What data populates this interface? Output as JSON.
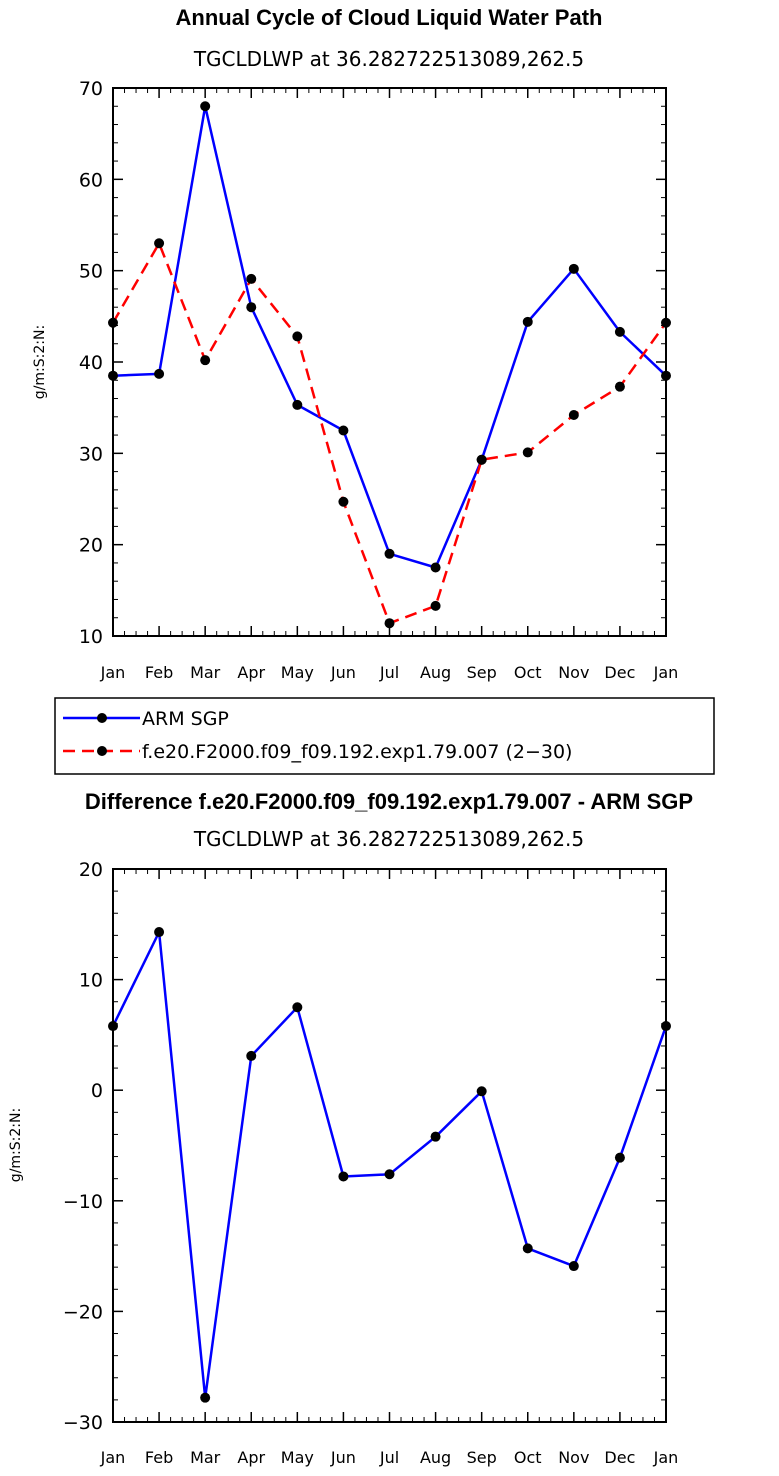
{
  "colors": {
    "arm": "#0000ff",
    "model": "#ff0000",
    "marker": "#000000",
    "axis": "#000000"
  },
  "chart_data": [
    {
      "type": "line",
      "title": "Annual Cycle of Cloud Liquid Water Path",
      "subtitle": "TGCLDLWP at 36.282722513089,262.5",
      "xlabel": "",
      "ylabel": "g/m:S:2:N:",
      "categories": [
        "Jan",
        "Feb",
        "Mar",
        "Apr",
        "May",
        "Jun",
        "Jul",
        "Aug",
        "Sep",
        "Oct",
        "Nov",
        "Dec",
        "Jan"
      ],
      "ylim": [
        10,
        70
      ],
      "yticks": [
        10,
        20,
        30,
        40,
        50,
        60,
        70
      ],
      "series": [
        {
          "name": "ARM SGP",
          "style": "solid",
          "color": "#0000ff",
          "values": [
            38.5,
            38.7,
            68.0,
            46.0,
            35.3,
            32.5,
            19.0,
            17.5,
            29.3,
            44.4,
            50.2,
            43.3,
            38.5
          ]
        },
        {
          "name": "f.e20.F2000.f09_f09.192.exp1.79.007 (2−30)",
          "style": "dashed",
          "color": "#ff0000",
          "values": [
            44.3,
            53.0,
            40.2,
            49.1,
            42.8,
            24.7,
            11.4,
            13.3,
            29.3,
            30.1,
            34.2,
            37.3,
            44.3
          ]
        }
      ],
      "legend": "below"
    },
    {
      "type": "line",
      "title": "Difference f.e20.F2000.f09_f09.192.exp1.79.007 - ARM SGP",
      "subtitle": "TGCLDLWP at 36.282722513089,262.5",
      "xlabel": "",
      "ylabel": "g/m:S:2:N:",
      "categories": [
        "Jan",
        "Feb",
        "Mar",
        "Apr",
        "May",
        "Jun",
        "Jul",
        "Aug",
        "Sep",
        "Oct",
        "Nov",
        "Dec",
        "Jan"
      ],
      "ylim": [
        -30,
        20
      ],
      "yticks": [
        -30,
        -20,
        -10,
        0,
        10,
        20
      ],
      "series": [
        {
          "name": "Difference",
          "style": "solid",
          "color": "#0000ff",
          "values": [
            5.8,
            14.3,
            -27.8,
            3.1,
            7.5,
            -7.8,
            -7.6,
            -4.2,
            -0.1,
            -14.3,
            -15.9,
            -6.1,
            5.8
          ]
        }
      ]
    }
  ]
}
